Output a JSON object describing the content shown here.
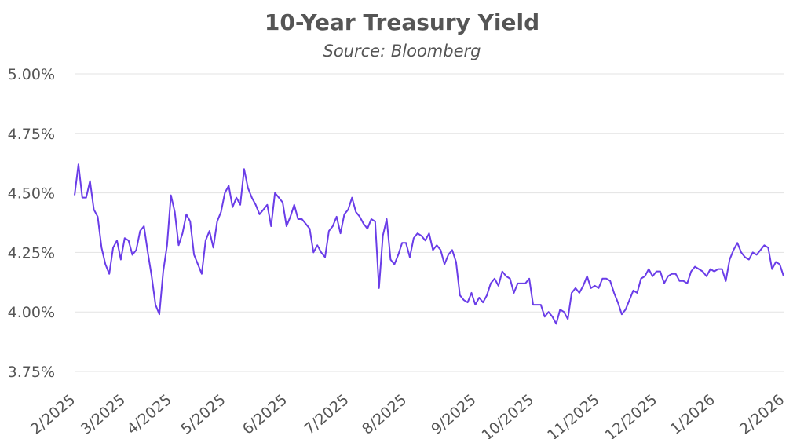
{
  "chart_data": {
    "type": "line",
    "title": "10-Year Treasury Yield",
    "subtitle": "Source: Bloomberg",
    "color": "#6a3de8",
    "grid": true,
    "values": [
      4.49,
      4.62,
      4.48,
      4.48,
      4.55,
      4.43,
      4.4,
      4.27,
      4.2,
      4.16,
      4.27,
      4.3,
      4.22,
      4.31,
      4.3,
      4.24,
      4.26,
      4.34,
      4.36,
      4.25,
      4.15,
      4.03,
      3.99,
      4.17,
      4.28,
      4.49,
      4.42,
      4.28,
      4.33,
      4.41,
      4.38,
      4.24,
      4.2,
      4.16,
      4.3,
      4.34,
      4.27,
      4.38,
      4.42,
      4.5,
      4.53,
      4.44,
      4.48,
      4.45,
      4.6,
      4.52,
      4.48,
      4.45,
      4.41,
      4.43,
      4.45,
      4.36,
      4.5,
      4.48,
      4.46,
      4.36,
      4.4,
      4.45,
      4.39,
      4.39,
      4.37,
      4.35,
      4.25,
      4.28,
      4.25,
      4.23,
      4.34,
      4.36,
      4.4,
      4.33,
      4.41,
      4.43,
      4.48,
      4.42,
      4.4,
      4.37,
      4.35,
      4.39,
      4.38,
      4.1,
      4.32,
      4.39,
      4.22,
      4.2,
      4.24,
      4.29,
      4.29,
      4.23,
      4.31,
      4.33,
      4.32,
      4.3,
      4.33,
      4.26,
      4.28,
      4.26,
      4.2,
      4.24,
      4.26,
      4.21,
      4.07,
      4.05,
      4.04,
      4.08,
      4.03,
      4.06,
      4.04,
      4.07,
      4.12,
      4.14,
      4.11,
      4.17,
      4.15,
      4.14,
      4.08,
      4.12,
      4.12,
      4.12,
      4.14,
      4.03,
      4.03,
      4.03,
      3.98,
      4.0,
      3.98,
      3.95,
      4.01,
      4.0,
      3.97,
      4.08,
      4.1,
      4.08,
      4.11,
      4.15,
      4.1,
      4.11,
      4.1,
      4.14,
      4.14,
      4.13,
      4.08,
      4.04,
      3.99,
      4.01,
      4.05,
      4.09,
      4.08,
      4.14,
      4.15,
      4.18,
      4.15,
      4.17,
      4.17,
      4.12,
      4.15,
      4.16,
      4.16,
      4.13,
      4.13,
      4.12,
      4.17,
      4.19,
      4.18,
      4.17,
      4.15,
      4.18,
      4.17,
      4.18,
      4.18,
      4.13,
      4.22,
      4.26,
      4.29,
      4.25,
      4.23,
      4.22,
      4.25,
      4.24,
      4.26,
      4.28,
      4.27,
      4.18,
      4.21,
      4.2,
      4.15
    ],
    "xlim": [
      0,
      184
    ],
    "xticks": [
      {
        "value": 0,
        "label": "2/2025"
      },
      {
        "value": 13,
        "label": "3/2025"
      },
      {
        "value": 25,
        "label": "4/2025"
      },
      {
        "value": 39,
        "label": "5/2025"
      },
      {
        "value": 55,
        "label": "6/2025"
      },
      {
        "value": 71,
        "label": "7/2025"
      },
      {
        "value": 86,
        "label": "8/2025"
      },
      {
        "value": 104,
        "label": "9/2025"
      },
      {
        "value": 119,
        "label": "10/2025"
      },
      {
        "value": 136,
        "label": "11/2025"
      },
      {
        "value": 151,
        "label": "12/2025"
      },
      {
        "value": 166,
        "label": "1/2026"
      },
      {
        "value": 184,
        "label": "2/2026"
      }
    ],
    "ylim": [
      3.75,
      5.0
    ],
    "yticks": [
      {
        "value": 3.75,
        "label": "3.75%"
      },
      {
        "value": 4.0,
        "label": "4.00%"
      },
      {
        "value": 4.25,
        "label": "4.25%"
      },
      {
        "value": 4.5,
        "label": "4.50%"
      },
      {
        "value": 4.75,
        "label": "4.75%"
      },
      {
        "value": 5.0,
        "label": "5.00%"
      }
    ]
  }
}
